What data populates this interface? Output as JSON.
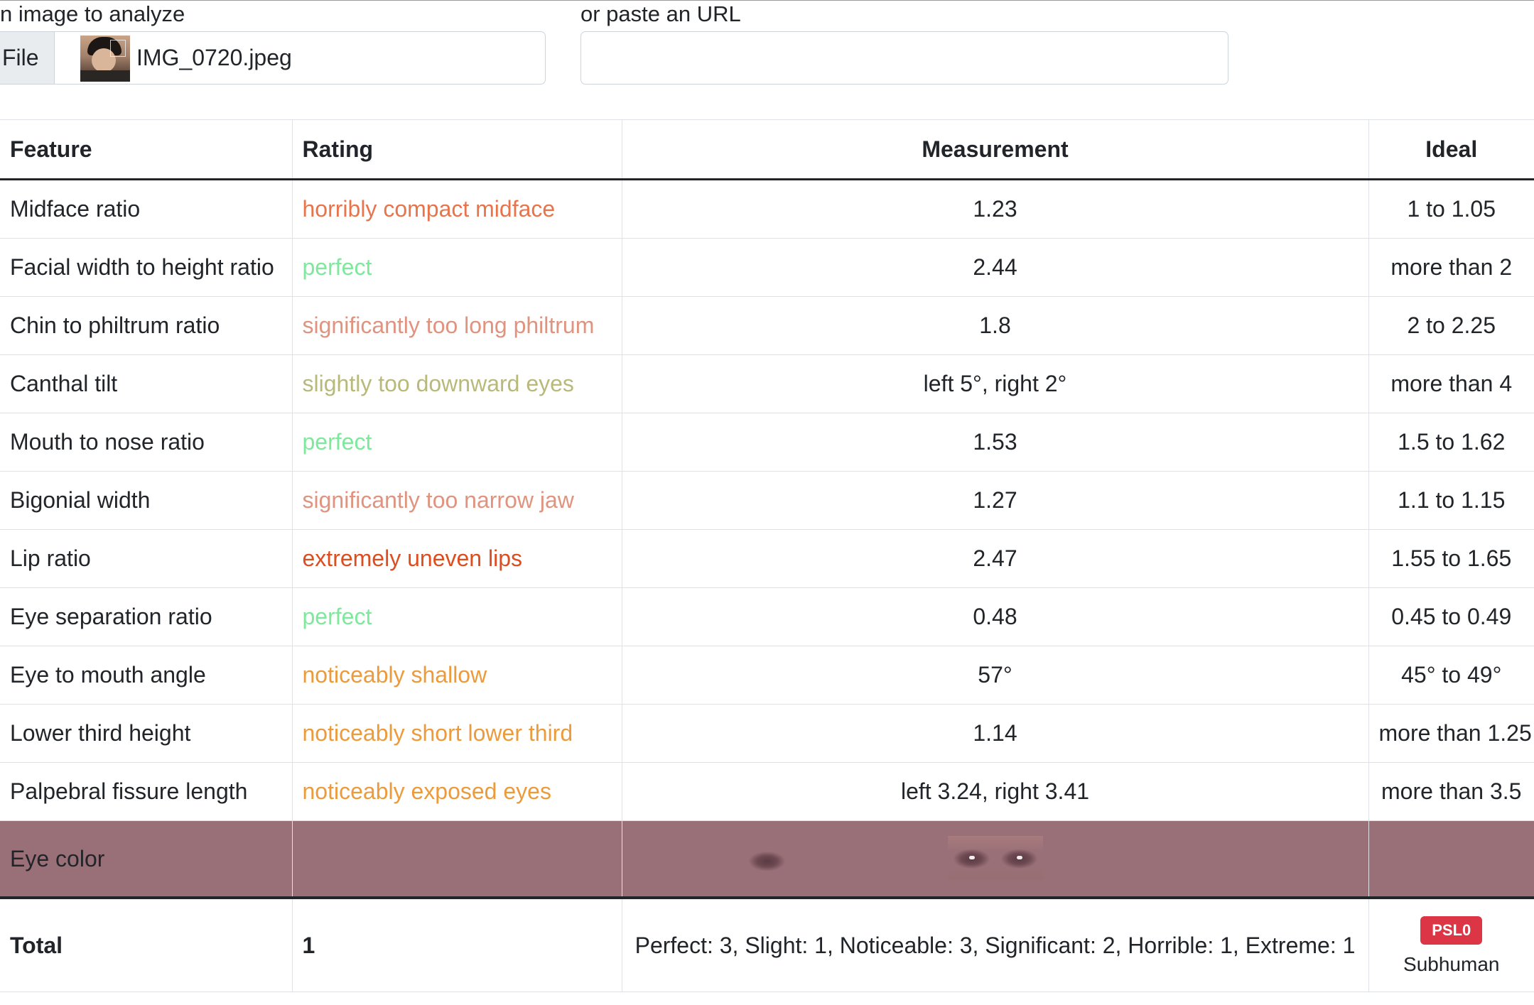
{
  "upload": {
    "label": "n image to analyze",
    "file_button": "File",
    "file_name": "IMG_0720.jpeg",
    "url_label": "or paste an URL",
    "url_value": ""
  },
  "table": {
    "headers": [
      "Feature",
      "Rating",
      "Measurement",
      "Ideal"
    ],
    "rows": [
      {
        "feature": "Midface ratio",
        "rating": "horribly compact midface",
        "rating_color": "#e8744c",
        "measurement": "1.23",
        "ideal": "1 to 1.05"
      },
      {
        "feature": "Facial width to height ratio",
        "rating": "perfect",
        "rating_color": "#7ee89c",
        "measurement": "2.44",
        "ideal": "more than 2"
      },
      {
        "feature": "Chin to philtrum ratio",
        "rating": "significantly too long philtrum",
        "rating_color": "#e0937e",
        "measurement": "1.8",
        "ideal": "2 to 2.25"
      },
      {
        "feature": "Canthal tilt",
        "rating": "slightly too downward eyes",
        "rating_color": "#b8b97a",
        "measurement": "left 5°, right 2°",
        "ideal": "more than 4"
      },
      {
        "feature": "Mouth to nose ratio",
        "rating": "perfect",
        "rating_color": "#7ee89c",
        "measurement": "1.53",
        "ideal": "1.5 to 1.62"
      },
      {
        "feature": "Bigonial width",
        "rating": "significantly too narrow jaw",
        "rating_color": "#e0937e",
        "measurement": "1.27",
        "ideal": "1.1 to 1.15"
      },
      {
        "feature": "Lip ratio",
        "rating": "extremely uneven lips",
        "rating_color": "#dd4d1f",
        "measurement": "2.47",
        "ideal": "1.55 to 1.65"
      },
      {
        "feature": "Eye separation ratio",
        "rating": "perfect",
        "rating_color": "#7ee89c",
        "measurement": "0.48",
        "ideal": "0.45 to 0.49"
      },
      {
        "feature": "Eye to mouth angle",
        "rating": "noticeably shallow",
        "rating_color": "#ec9b3c",
        "measurement": "57°",
        "ideal": "45° to 49°"
      },
      {
        "feature": "Lower third height",
        "rating": "noticeably short lower third",
        "rating_color": "#ec9b3c",
        "measurement": "1.14",
        "ideal": "more than 1.25"
      },
      {
        "feature": "Palpebral fissure length",
        "rating": "noticeably exposed eyes",
        "rating_color": "#ec9b3c",
        "measurement": "left 3.24, right 3.41",
        "ideal": "more than 3.5"
      },
      {
        "feature": "Eye color",
        "rating": "",
        "measurement": "",
        "ideal": ""
      }
    ],
    "footer": {
      "label": "Total",
      "score": "1",
      "summary": "Perfect: 3, Slight: 1, Noticeable: 3, Significant: 2, Horrible: 1, Extreme: 1",
      "badge": "PSL0",
      "tier": "Subhuman"
    }
  }
}
